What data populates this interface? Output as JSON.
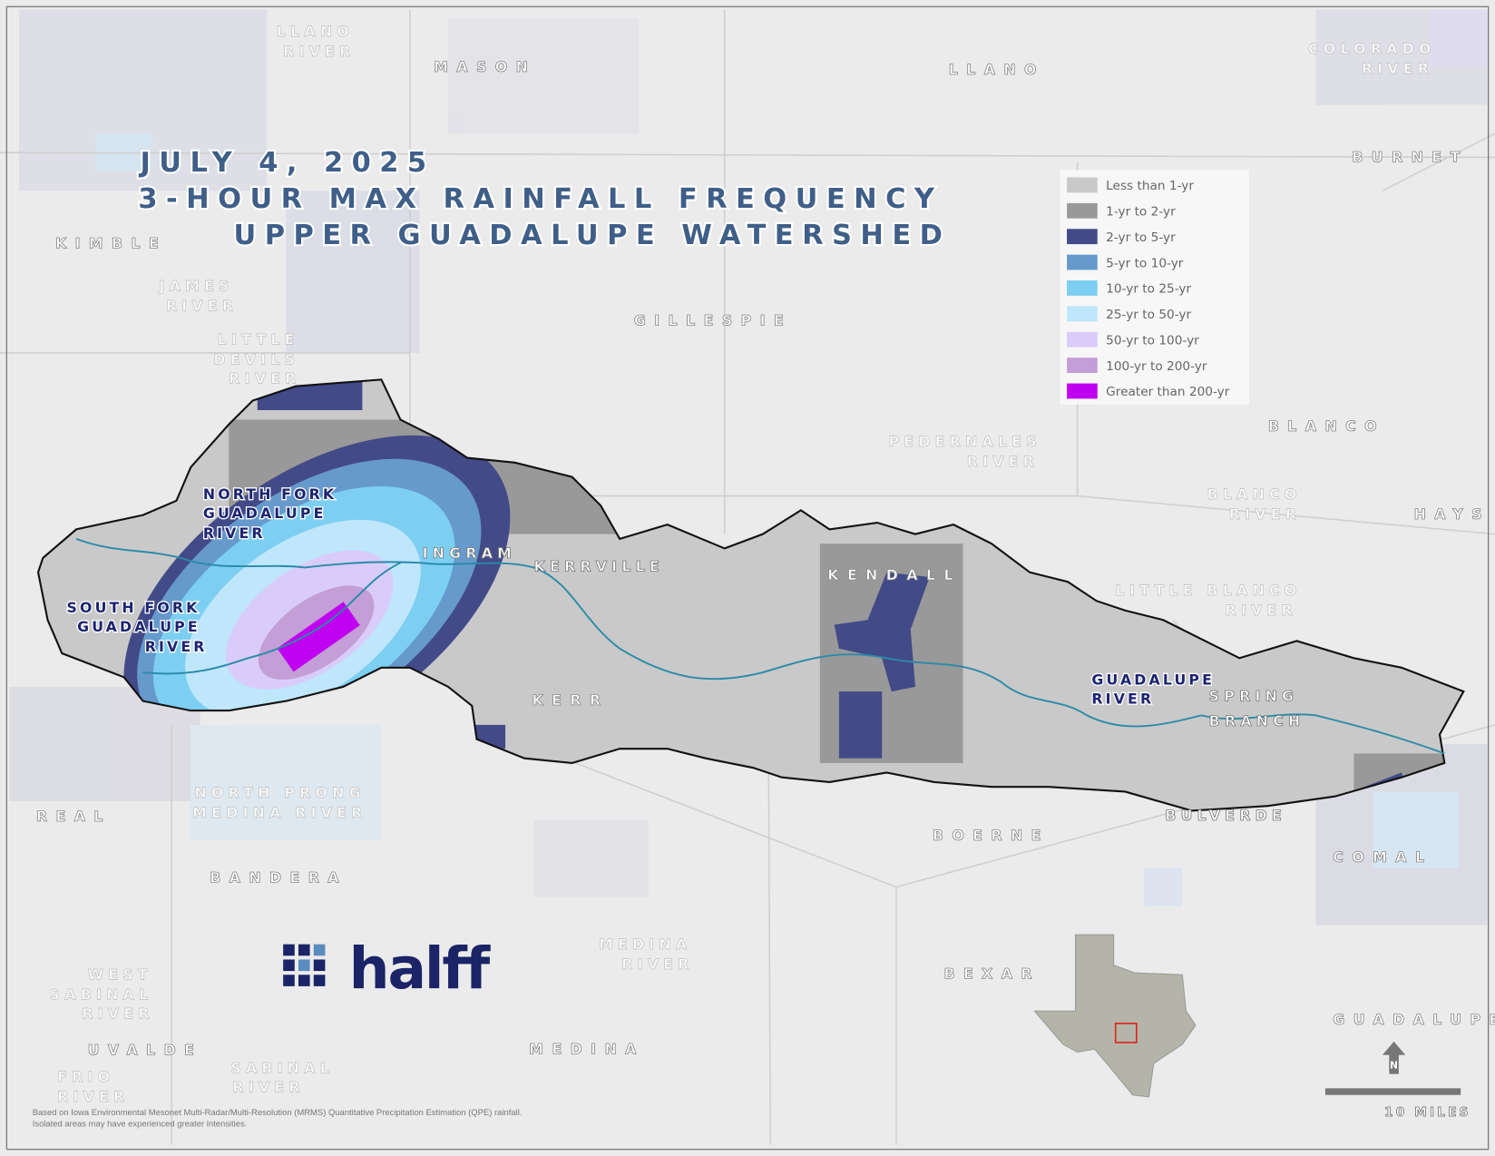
{
  "title": {
    "line1": "JULY 4, 2025",
    "line2": "3-HOUR MAX RAINFALL FREQUENCY",
    "line3": "UPPER GUADALUPE WATERSHED"
  },
  "legend": [
    {
      "label": "Less than 1-yr",
      "color": "#c9c9c9"
    },
    {
      "label": "1-yr to 2-yr",
      "color": "#999999"
    },
    {
      "label": "2-yr to 5-yr",
      "color": "#424a88"
    },
    {
      "label": "5-yr to 10-yr",
      "color": "#6699cc"
    },
    {
      "label": "10-yr to 25-yr",
      "color": "#7dcff2"
    },
    {
      "label": "25-yr to 50-yr",
      "color": "#bfe6fb"
    },
    {
      "label": "50-yr to 100-yr",
      "color": "#d9ccfb"
    },
    {
      "label": "100-yr to 200-yr",
      "color": "#c49ed6"
    },
    {
      "label": "Greater than 200-yr",
      "color": "#c000f0"
    }
  ],
  "counties": [
    "MASON",
    "LLANO",
    "BURNET",
    "KIMBLE",
    "GILLESPIE",
    "BLANCO",
    "HAYS",
    "KENDALL",
    "KERR",
    "REAL",
    "BANDERA",
    "BOERNE",
    "COMAL",
    "BEXAR",
    "UVALDE",
    "MEDINA",
    "GUADALUPE"
  ],
  "outer_rivers": {
    "llano": [
      "LLANO",
      "RIVER"
    ],
    "colorado": [
      "COLORADO",
      "RIVER"
    ],
    "james": [
      "JAMES",
      "RIVER"
    ],
    "little_devils": [
      "LITTLE",
      "DEVILS",
      "RIVER"
    ],
    "pedernales": [
      "PEDERNALES",
      "RIVER"
    ],
    "blanco": [
      "BLANCO",
      "RIVER"
    ],
    "little_blanco": [
      "LITTLE BLANCO",
      "RIVER"
    ],
    "north_prong": [
      "NORTH PRONG",
      "MEDINA RIVER"
    ],
    "medina": [
      "MEDINA",
      "RIVER"
    ],
    "west_sabinal": [
      "WEST",
      "SABINAL",
      "RIVER"
    ],
    "sabinal": [
      "SABINAL",
      "RIVER"
    ],
    "frio": [
      "FRIO",
      "RIVER"
    ]
  },
  "watershed_rivers": {
    "north_fork": [
      "NORTH FORK",
      "GUADALUPE",
      "RIVER"
    ],
    "south_fork": [
      "SOUTH FORK",
      "GUADALUPE",
      "RIVER"
    ],
    "guadalupe": [
      "GUADALUPE",
      "RIVER"
    ]
  },
  "places": {
    "ingram": "INGRAM",
    "kerrville": "KERRVILLE",
    "spring_branch": [
      "SPRING",
      "BRANCH"
    ],
    "bulverde": "BULVERDE"
  },
  "logo": {
    "text": "halff",
    "color": "#1a2466"
  },
  "scale_bar": {
    "label": "10 MILES"
  },
  "north_arrow": {
    "label": "N"
  },
  "footnote": [
    "Based on Iowa Environmental Mesonet Multi-Radar/Multi-Resolution (MRMS) Quantitative Precipitation Estimation (QPE) rainfall.",
    "Isolated areas may have experienced greater intensities."
  ],
  "colors": {
    "background": "#ebebeb",
    "river": "#2a8aa8",
    "title": "#3f5f88",
    "locator_box": "#e0201b"
  }
}
